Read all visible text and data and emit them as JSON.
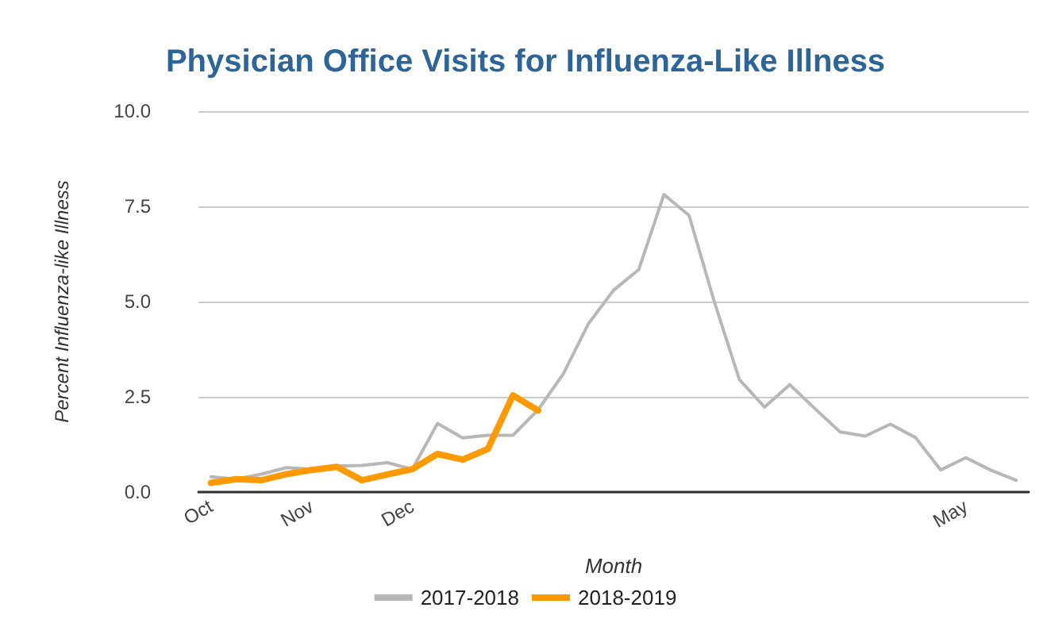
{
  "chart_data": {
    "type": "line",
    "title": "Physician Office Visits for Influenza-Like Illness",
    "xlabel": "Month",
    "ylabel": "Percent Influenza-like Illness",
    "categories": [
      "Oct",
      null,
      null,
      null,
      "Nov",
      null,
      null,
      null,
      "Dec",
      null,
      null,
      null,
      null,
      null,
      null,
      null,
      null,
      null,
      null,
      null,
      null,
      null,
      null,
      null,
      null,
      null,
      null,
      null,
      null,
      null,
      "May",
      null,
      null
    ],
    "series": [
      {
        "name": "2017-2018",
        "color": "#b7b7b7",
        "values": [
          0.4,
          0.34,
          0.47,
          0.64,
          0.6,
          0.68,
          0.7,
          0.77,
          0.6,
          1.8,
          1.42,
          1.49,
          1.49,
          2.16,
          3.1,
          4.42,
          5.3,
          5.84,
          7.81,
          7.26,
          5.0,
          2.95,
          2.23,
          2.82,
          2.19,
          1.58,
          1.47,
          1.78,
          1.43,
          0.58,
          0.9,
          0.57,
          0.31
        ]
      },
      {
        "name": "2018-2019",
        "color": "#ff9900",
        "values": [
          0.24,
          0.34,
          0.31,
          0.47,
          0.58,
          0.66,
          0.31,
          0.46,
          0.6,
          1.0,
          0.85,
          1.13,
          2.54,
          2.14,
          null,
          null,
          null,
          null,
          null,
          null,
          null,
          null,
          null,
          null,
          null,
          null,
          null,
          null,
          null,
          null,
          null,
          null,
          null
        ]
      }
    ],
    "ylim": [
      0,
      10
    ],
    "yticks": [
      {
        "value": 0,
        "label": "0.0"
      },
      {
        "value": 2.5,
        "label": "2.5"
      },
      {
        "value": 5,
        "label": "5.0"
      },
      {
        "value": 7.5,
        "label": "7.5"
      },
      {
        "value": 10,
        "label": "10.0"
      }
    ],
    "grid": "y",
    "legend": "bottom",
    "marker": "none",
    "line_style": "solid"
  }
}
